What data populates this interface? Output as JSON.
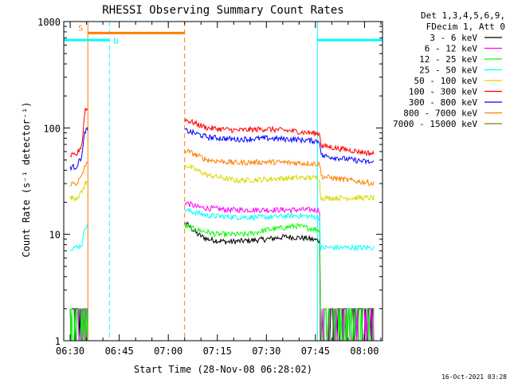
{
  "chart_data": {
    "type": "line",
    "title": "RHESSI Observing Summary Count Rates",
    "xlabel": "Start Time (28-Nov-08 06:28:02)",
    "ylabel": "Count Rate (s⁻¹ detector⁻¹)",
    "yscale": "log",
    "ylim": [
      1,
      1000
    ],
    "xlim": [
      6.4672,
      8.0917
    ],
    "x_ticks": [
      {
        "label": "06:30",
        "value": 6.5
      },
      {
        "label": "06:45",
        "value": 6.75
      },
      {
        "label": "07:00",
        "value": 7.0
      },
      {
        "label": "07:15",
        "value": 7.25
      },
      {
        "label": "07:30",
        "value": 7.5
      },
      {
        "label": "07:45",
        "value": 7.75
      },
      {
        "label": "08:00",
        "value": 8.0
      }
    ],
    "y_ticks": [
      {
        "label": "1",
        "value": 1
      },
      {
        "label": "10",
        "value": 10
      },
      {
        "label": "100",
        "value": 100
      },
      {
        "label": "1000",
        "value": 1000
      }
    ],
    "legend_header": [
      "Det 1,3,4,5,6,9,",
      "FDecim 1, Att 0"
    ],
    "legend_position": "right",
    "series": [
      {
        "name": "3 - 6 keV",
        "color": "#000000",
        "points": [
          [
            6.5,
            1.5
          ],
          [
            6.57,
            1.5
          ],
          [
            6.575,
            1.6
          ],
          [
            7.085,
            13
          ],
          [
            7.15,
            10
          ],
          [
            7.2,
            9
          ],
          [
            7.3,
            8.5
          ],
          [
            7.4,
            8.7
          ],
          [
            7.5,
            9
          ],
          [
            7.6,
            9.5
          ],
          [
            7.7,
            9.2
          ],
          [
            7.772,
            8.7
          ],
          [
            7.775,
            1.5
          ],
          [
            8.05,
            1.5
          ]
        ]
      },
      {
        "name": "6 - 12 keV",
        "color": "#ff00ff",
        "points": [
          [
            6.5,
            1.5
          ],
          [
            6.57,
            1.5
          ],
          [
            6.575,
            2.2
          ],
          [
            7.085,
            20
          ],
          [
            7.15,
            18
          ],
          [
            7.3,
            17
          ],
          [
            7.5,
            17
          ],
          [
            7.7,
            17
          ],
          [
            7.772,
            17
          ],
          [
            7.775,
            1.5
          ],
          [
            8.05,
            1.5
          ]
        ]
      },
      {
        "name": "12 - 25 keV",
        "color": "#00ff00",
        "points": [
          [
            6.5,
            1.8
          ],
          [
            6.57,
            1.8
          ],
          [
            6.575,
            1.9
          ],
          [
            7.085,
            12
          ],
          [
            7.15,
            11
          ],
          [
            7.25,
            10
          ],
          [
            7.4,
            10
          ],
          [
            7.5,
            11
          ],
          [
            7.65,
            12
          ],
          [
            7.772,
            11
          ],
          [
            7.775,
            1.8
          ],
          [
            8.05,
            1.8
          ]
        ]
      },
      {
        "name": "25 - 50 keV",
        "color": "#00ffff",
        "points": [
          [
            6.5,
            7.5
          ],
          [
            6.53,
            7.5
          ],
          [
            6.56,
            8
          ],
          [
            6.575,
            12
          ],
          [
            7.085,
            17
          ],
          [
            7.2,
            15
          ],
          [
            7.35,
            14.5
          ],
          [
            7.5,
            14.5
          ],
          [
            7.65,
            15
          ],
          [
            7.772,
            14.5
          ],
          [
            7.775,
            7.5
          ],
          [
            8.05,
            7.5
          ]
        ]
      },
      {
        "name": "50 - 100 keV",
        "color": "#d8d800",
        "points": [
          [
            6.5,
            22
          ],
          [
            6.53,
            22
          ],
          [
            6.56,
            25
          ],
          [
            6.575,
            30
          ],
          [
            7.085,
            45
          ],
          [
            7.2,
            36
          ],
          [
            7.35,
            32
          ],
          [
            7.5,
            33
          ],
          [
            7.65,
            34
          ],
          [
            7.772,
            34
          ],
          [
            7.775,
            22
          ],
          [
            8.05,
            22
          ]
        ]
      },
      {
        "name": "100 - 300 keV",
        "color": "#ff0000",
        "points": [
          [
            6.5,
            55
          ],
          [
            6.53,
            55
          ],
          [
            6.56,
            70
          ],
          [
            6.575,
            150
          ],
          [
            7.085,
            120
          ],
          [
            7.2,
            100
          ],
          [
            7.35,
            95
          ],
          [
            7.5,
            98
          ],
          [
            7.65,
            93
          ],
          [
            7.772,
            88
          ],
          [
            7.78,
            68
          ],
          [
            8.05,
            57
          ]
        ]
      },
      {
        "name": "300 - 800 keV",
        "color": "#0000ff",
        "points": [
          [
            6.5,
            43
          ],
          [
            6.53,
            43
          ],
          [
            6.56,
            55
          ],
          [
            6.575,
            95
          ],
          [
            7.085,
            95
          ],
          [
            7.2,
            82
          ],
          [
            7.35,
            78
          ],
          [
            7.5,
            80
          ],
          [
            7.65,
            78
          ],
          [
            7.772,
            75
          ],
          [
            7.78,
            55
          ],
          [
            8.05,
            47
          ]
        ]
      },
      {
        "name": "800 - 7000 keV",
        "color": "#ff7f00",
        "points": [
          [
            6.5,
            30
          ],
          [
            6.53,
            30
          ],
          [
            6.56,
            35
          ],
          [
            6.575,
            45
          ],
          [
            7.085,
            62
          ],
          [
            7.2,
            50
          ],
          [
            7.35,
            47
          ],
          [
            7.5,
            48
          ],
          [
            7.65,
            47
          ],
          [
            7.772,
            46
          ],
          [
            7.78,
            35
          ],
          [
            8.05,
            30
          ]
        ]
      },
      {
        "name": "7000 - 15000 keV",
        "color": "#808000",
        "points": []
      }
    ],
    "markers": [
      {
        "label": "S",
        "color": "#ff7f00",
        "x_start": 6.59,
        "x_end": 7.0833,
        "y": 780
      },
      {
        "label": "N",
        "color": "#00ffff",
        "x_start": 6.4672,
        "x_end": 6.7,
        "y": 670
      },
      {
        "label": "",
        "color": "#00ffff",
        "x_start": 7.76,
        "x_end": 8.0917,
        "y": 670
      }
    ],
    "vertical_lines": [
      {
        "x": 6.59,
        "color": "#ff7f00",
        "style": "solid"
      },
      {
        "x": 6.7,
        "color": "#00ffff",
        "style": "dashed"
      },
      {
        "x": 7.0833,
        "color": "#ff7f00",
        "style": "dashed"
      },
      {
        "x": 7.76,
        "color": "#00ffff",
        "style": "solid"
      },
      {
        "x": 8.0917,
        "color": "#00ffff",
        "style": "dashed"
      }
    ],
    "grid": false
  },
  "footer_timestamp": "16-Oct-2021 03:28",
  "colors": {
    "background": "#ffffff",
    "axis": "#000000"
  }
}
